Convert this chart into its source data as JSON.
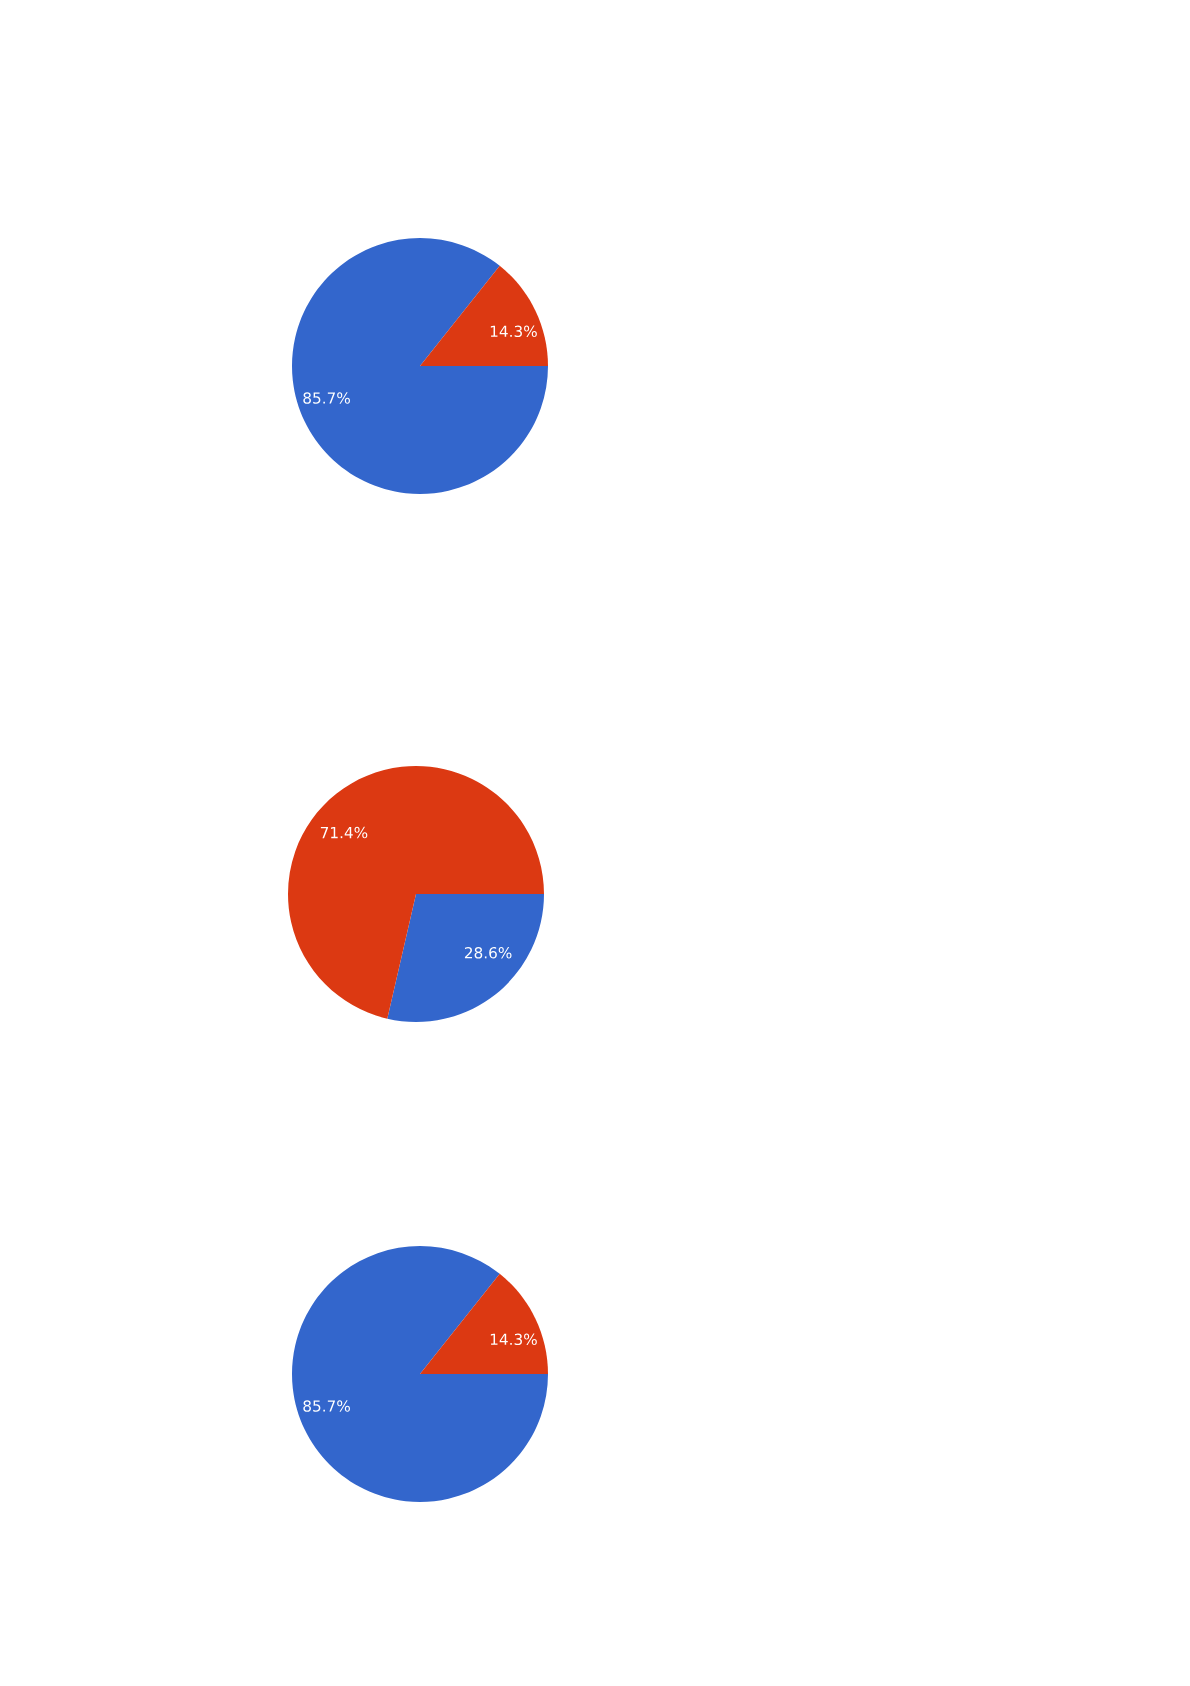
{
  "chart_data": [
    {
      "type": "pie",
      "categories": [
        null,
        null
      ],
      "values": [
        85.7,
        14.3
      ],
      "value_labels": [
        "85.7%",
        "14.3%"
      ],
      "colors": [
        "#3366cc",
        "#dc3912"
      ]
    },
    {
      "type": "pie",
      "categories": [
        null,
        null
      ],
      "values": [
        28.6,
        71.4
      ],
      "value_labels": [
        "28.6%",
        "71.4%"
      ],
      "colors": [
        "#3366cc",
        "#dc3912"
      ]
    },
    {
      "type": "pie",
      "categories": [
        null,
        null
      ],
      "values": [
        85.7,
        14.3
      ],
      "value_labels": [
        "85.7%",
        "14.3%"
      ],
      "colors": [
        "#3366cc",
        "#dc3912"
      ]
    }
  ]
}
